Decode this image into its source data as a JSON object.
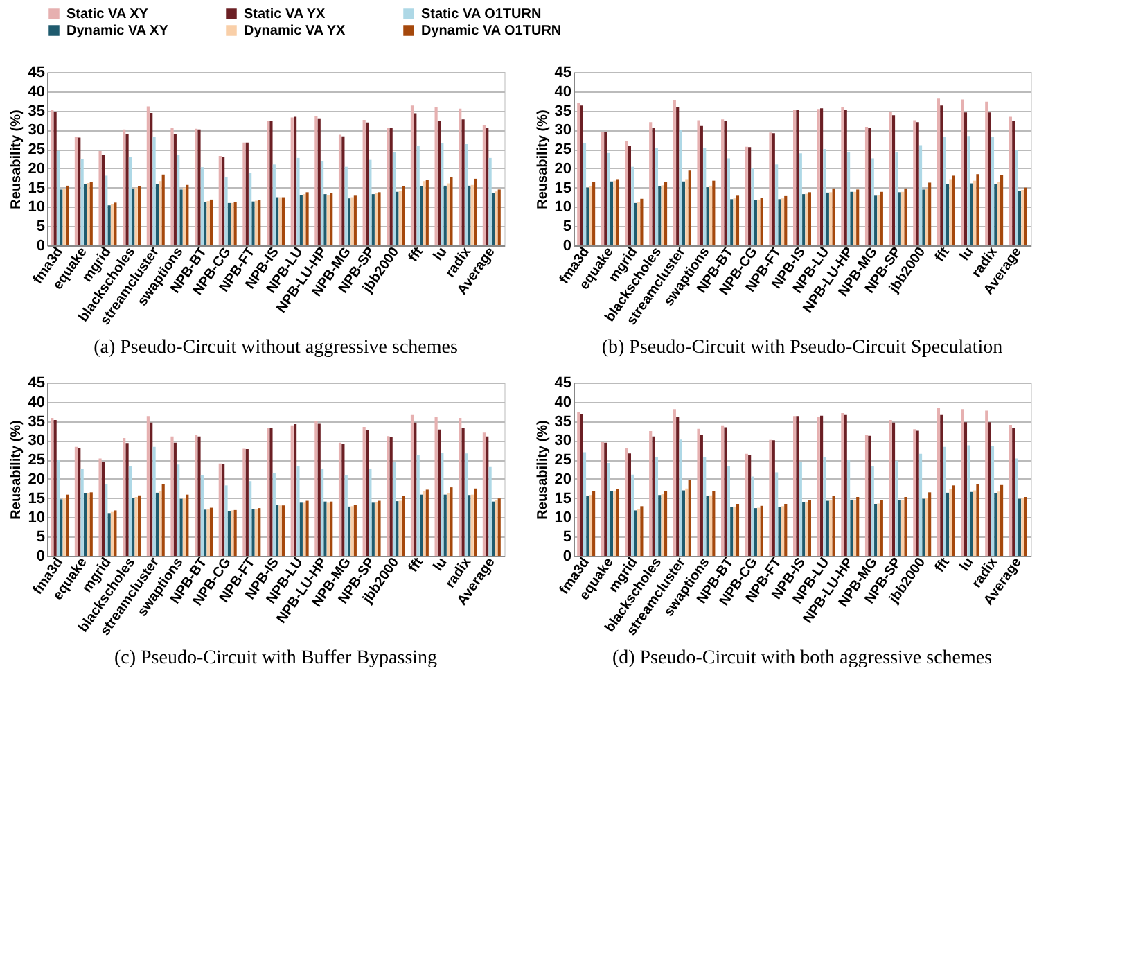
{
  "chart_data": [
    {
      "type": "bar",
      "categories": [
        "fma3d",
        "equake",
        "mgrid",
        "blackscholes",
        "streamcluster",
        "swaptions",
        "NPB-BT",
        "NPB-CG",
        "NPB-FT",
        "NPB-IS",
        "NPB-LU",
        "NPB-LU-HP",
        "NPB-MG",
        "NPB-SP",
        "jbb2000",
        "fft",
        "lu",
        "radix",
        "Average"
      ],
      "ylabel": "Reusability (%)",
      "ylim": [
        0,
        45
      ],
      "yticks": [
        0,
        5,
        10,
        15,
        20,
        25,
        30,
        35,
        40,
        45
      ],
      "grid": "y",
      "legend": "top",
      "annotations": [
        "(a) Pseudo-Circuit without aggressive schemes"
      ],
      "series": [
        {
          "name": "Static VA XY",
          "color": "#e6b0b0",
          "values": [
            35.3,
            28.1,
            24.5,
            30.1,
            36.1,
            30.5,
            30.3,
            23.2,
            26.7,
            32.2,
            33.2,
            33.5,
            28.7,
            32.6,
            30.6,
            36.3,
            36.0,
            35.5,
            31.2
          ]
        },
        {
          "name": "Static VA YX",
          "color": "#6b1f24",
          "values": [
            34.7,
            28.0,
            23.5,
            28.8,
            34.4,
            28.9,
            30.1,
            23.0,
            26.7,
            32.2,
            33.4,
            33.0,
            28.3,
            31.9,
            30.4,
            34.3,
            32.4,
            32.7,
            30.4
          ]
        },
        {
          "name": "Static VA O1TURN",
          "color": "#aed8e6",
          "values": [
            24.5,
            22.5,
            18.1,
            23.0,
            28.1,
            23.4,
            20.3,
            17.7,
            18.9,
            21.0,
            22.7,
            21.9,
            20.4,
            22.2,
            24.1,
            25.8,
            26.5,
            26.3,
            22.7
          ]
        },
        {
          "name": "Dynamic VA XY",
          "color": "#1f5b6e",
          "values": [
            14.5,
            16.0,
            10.4,
            14.6,
            15.9,
            14.5,
            11.3,
            11.0,
            11.4,
            12.5,
            13.1,
            13.3,
            12.2,
            13.3,
            13.9,
            15.4,
            15.5,
            15.5,
            13.6
          ]
        },
        {
          "name": "Dynamic VA YX",
          "color": "#f9cfa8",
          "values": [
            14.8,
            16.2,
            10.7,
            15.0,
            16.7,
            15.0,
            11.5,
            11.0,
            11.6,
            12.5,
            13.3,
            13.1,
            12.5,
            13.5,
            14.1,
            16.7,
            16.1,
            15.7,
            14.0
          ]
        },
        {
          "name": "Dynamic VA O1TURN",
          "color": "#a5480c",
          "values": [
            15.5,
            16.4,
            11.1,
            15.4,
            18.4,
            15.7,
            11.9,
            11.3,
            11.8,
            12.5,
            13.8,
            13.5,
            12.9,
            13.8,
            15.3,
            17.1,
            17.7,
            17.3,
            14.5
          ]
        }
      ]
    },
    {
      "type": "bar",
      "categories": [
        "fma3d",
        "equake",
        "mgrid",
        "blackscholes",
        "streamcluster",
        "swaptions",
        "NPB-BT",
        "NPB-CG",
        "NPB-FT",
        "NPB-IS",
        "NPB-LU",
        "NPB-LU-HP",
        "NPB-MG",
        "NPB-SP",
        "jbb2000",
        "fft",
        "lu",
        "radix",
        "Average"
      ],
      "ylabel": "Reusability (%)",
      "ylim": [
        0,
        45
      ],
      "yticks": [
        0,
        5,
        10,
        15,
        20,
        25,
        30,
        35,
        40,
        45
      ],
      "grid": "y",
      "legend": "top",
      "annotations": [
        "(b) Pseudo-Circuit with Pseudo-Circuit Speculation"
      ],
      "series": [
        {
          "name": "Static VA XY",
          "color": "#e6b0b0",
          "values": [
            36.9,
            29.5,
            27.1,
            32.0,
            37.8,
            32.5,
            32.7,
            25.6,
            29.3,
            35.2,
            35.4,
            35.8,
            30.8,
            34.6,
            32.5,
            38.1,
            37.9,
            37.3,
            33.4
          ]
        },
        {
          "name": "Static VA YX",
          "color": "#6b1f24",
          "values": [
            36.3,
            29.4,
            25.8,
            30.5,
            35.8,
            31.0,
            32.3,
            25.5,
            29.1,
            35.1,
            35.6,
            35.3,
            30.4,
            33.8,
            32.0,
            36.3,
            34.5,
            34.5,
            32.3
          ]
        },
        {
          "name": "Static VA O1TURN",
          "color": "#aed8e6",
          "values": [
            26.5,
            24.0,
            20.4,
            25.2,
            29.9,
            25.3,
            22.6,
            20.1,
            21.0,
            23.9,
            25.0,
            24.1,
            22.6,
            24.2,
            26.0,
            28.1,
            28.4,
            28.2,
            24.8
          ]
        },
        {
          "name": "Dynamic VA XY",
          "color": "#1f5b6e",
          "values": [
            15.0,
            16.6,
            11.0,
            15.4,
            16.6,
            15.1,
            12.0,
            11.7,
            12.0,
            13.3,
            13.7,
            13.9,
            12.9,
            13.8,
            14.5,
            16.0,
            16.1,
            15.9,
            14.2
          ]
        },
        {
          "name": "Dynamic VA YX",
          "color": "#f9cfa8",
          "values": [
            15.3,
            16.8,
            11.3,
            15.6,
            17.2,
            15.5,
            12.2,
            11.9,
            12.2,
            13.4,
            13.8,
            13.9,
            13.0,
            13.9,
            14.7,
            17.2,
            16.8,
            16.4,
            14.4
          ]
        },
        {
          "name": "Dynamic VA O1TURN",
          "color": "#a5480c",
          "values": [
            16.5,
            17.2,
            12.1,
            16.4,
            19.4,
            16.8,
            12.9,
            12.3,
            12.8,
            13.8,
            14.8,
            14.5,
            13.9,
            14.8,
            16.3,
            18.1,
            18.5,
            18.2,
            15.0
          ]
        }
      ]
    },
    {
      "type": "bar",
      "categories": [
        "fma3d",
        "equake",
        "mgrid",
        "blackscholes",
        "streamcluster",
        "swaptions",
        "NPB-BT",
        "NPB-CG",
        "NPB-FT",
        "NPB-IS",
        "NPB-LU",
        "NPB-LU-HP",
        "NPB-MG",
        "NPB-SP",
        "jbb2000",
        "fft",
        "lu",
        "radix",
        "Average"
      ],
      "ylabel": "Reusability (%)",
      "ylim": [
        0,
        45
      ],
      "yticks": [
        0,
        5,
        10,
        15,
        20,
        25,
        30,
        35,
        40,
        45
      ],
      "grid": "y",
      "legend": "top",
      "annotations": [
        "(c) Pseudo-Circuit with Buffer Bypassing"
      ],
      "series": [
        {
          "name": "Static VA XY",
          "color": "#e6b0b0",
          "values": [
            35.8,
            28.3,
            25.3,
            30.6,
            36.3,
            31.0,
            31.4,
            24.0,
            27.8,
            33.2,
            33.9,
            34.9,
            29.4,
            33.5,
            31.1,
            36.6,
            36.2,
            35.8,
            32.0
          ]
        },
        {
          "name": "Static VA YX",
          "color": "#6b1f24",
          "values": [
            35.3,
            28.1,
            24.4,
            29.3,
            34.6,
            29.4,
            31.0,
            23.9,
            27.7,
            33.2,
            34.2,
            34.3,
            29.1,
            32.6,
            30.8,
            34.6,
            32.8,
            33.1,
            31.0
          ]
        },
        {
          "name": "Static VA O1TURN",
          "color": "#aed8e6",
          "values": [
            24.9,
            22.6,
            18.7,
            23.4,
            28.3,
            23.7,
            20.9,
            18.3,
            19.4,
            21.5,
            23.3,
            22.5,
            20.9,
            22.5,
            24.5,
            26.1,
            26.8,
            26.6,
            23.1
          ]
        },
        {
          "name": "Dynamic VA XY",
          "color": "#1f5b6e",
          "values": [
            14.7,
            16.2,
            11.1,
            15.0,
            16.4,
            14.8,
            12.0,
            11.7,
            12.1,
            13.2,
            13.8,
            14.1,
            12.8,
            13.8,
            14.2,
            15.9,
            15.9,
            15.8,
            14.1
          ]
        },
        {
          "name": "Dynamic VA YX",
          "color": "#f9cfa8",
          "values": [
            15.1,
            16.3,
            11.4,
            15.3,
            16.8,
            15.1,
            12.1,
            11.8,
            12.2,
            13.1,
            13.8,
            13.8,
            12.9,
            13.9,
            14.3,
            16.8,
            16.3,
            15.9,
            14.4
          ]
        },
        {
          "name": "Dynamic VA O1TURN",
          "color": "#a5480c",
          "values": [
            15.9,
            16.5,
            11.8,
            15.7,
            18.7,
            15.9,
            12.5,
            11.9,
            12.4,
            13.1,
            14.3,
            14.1,
            13.2,
            14.3,
            15.6,
            17.2,
            17.8,
            17.5,
            14.9
          ]
        }
      ]
    },
    {
      "type": "bar",
      "categories": [
        "fma3d",
        "equake",
        "mgrid",
        "blackscholes",
        "streamcluster",
        "swaptions",
        "NPB-BT",
        "NPB-CG",
        "NPB-FT",
        "NPB-IS",
        "NPB-LU",
        "NPB-LU-HP",
        "NPB-MG",
        "NPB-SP",
        "jbb2000",
        "fft",
        "lu",
        "radix",
        "Average"
      ],
      "ylabel": "Reusability (%)",
      "ylim": [
        0,
        45
      ],
      "yticks": [
        0,
        5,
        10,
        15,
        20,
        25,
        30,
        35,
        40,
        45
      ],
      "grid": "y",
      "legend": "top",
      "annotations": [
        "(d) Pseudo-Circuit with both aggressive schemes"
      ],
      "series": [
        {
          "name": "Static VA XY",
          "color": "#e6b0b0",
          "values": [
            37.4,
            29.5,
            27.9,
            32.4,
            38.1,
            33.0,
            33.9,
            26.5,
            30.1,
            36.3,
            36.1,
            37.1,
            31.5,
            35.3,
            32.9,
            38.4,
            38.1,
            37.7,
            34.0
          ]
        },
        {
          "name": "Static VA YX",
          "color": "#6b1f24",
          "values": [
            36.8,
            29.4,
            26.6,
            31.0,
            36.1,
            31.5,
            33.4,
            26.3,
            30.0,
            36.3,
            36.4,
            36.6,
            31.2,
            34.6,
            32.5,
            36.6,
            34.7,
            34.7,
            33.1
          ]
        },
        {
          "name": "Static VA O1TURN",
          "color": "#aed8e6",
          "values": [
            26.9,
            24.1,
            21.1,
            25.6,
            30.2,
            25.7,
            23.2,
            20.6,
            21.7,
            24.5,
            25.6,
            24.9,
            23.2,
            24.7,
            26.5,
            28.3,
            28.7,
            28.5,
            25.3
          ]
        },
        {
          "name": "Dynamic VA XY",
          "color": "#1f5b6e",
          "values": [
            15.5,
            16.8,
            11.8,
            15.8,
            17.0,
            15.5,
            12.6,
            12.4,
            12.7,
            13.9,
            14.3,
            14.6,
            13.5,
            14.4,
            14.8,
            16.4,
            16.6,
            16.3,
            14.8
          ]
        },
        {
          "name": "Dynamic VA YX",
          "color": "#f9cfa8",
          "values": [
            15.8,
            16.9,
            12.1,
            16.0,
            17.5,
            15.7,
            12.8,
            12.5,
            12.9,
            14.0,
            14.5,
            14.6,
            13.6,
            14.5,
            15.1,
            17.4,
            17.0,
            16.7,
            15.0
          ]
        },
        {
          "name": "Dynamic VA O1TURN",
          "color": "#a5480c",
          "values": [
            16.9,
            17.3,
            12.9,
            16.8,
            19.7,
            16.9,
            13.5,
            13.0,
            13.5,
            14.5,
            15.5,
            15.3,
            14.4,
            15.3,
            16.5,
            18.3,
            18.7,
            18.4,
            15.3
          ]
        }
      ]
    }
  ]
}
